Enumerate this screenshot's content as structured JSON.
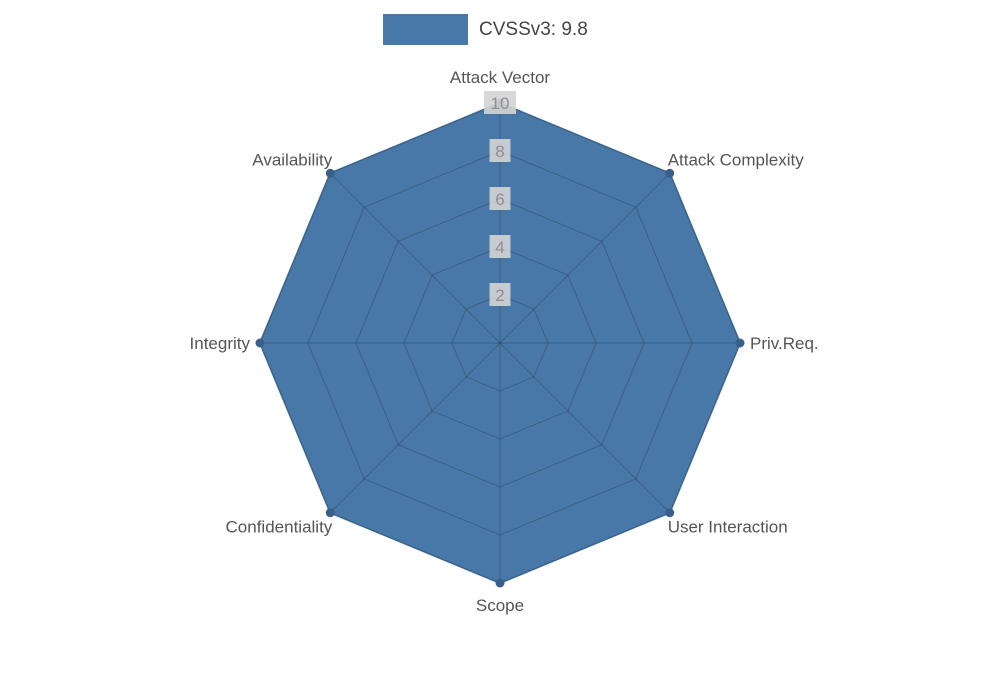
{
  "chart_data": {
    "type": "radar",
    "title": "",
    "categories": [
      "Attack Vector",
      "Attack Complexity",
      "Priv.Req.",
      "User Interaction",
      "Scope",
      "Confidentiality",
      "Integrity",
      "Availability"
    ],
    "series": [
      {
        "name": "CVSSv3: 9.8",
        "values": [
          10,
          10,
          10,
          10,
          10,
          10,
          10,
          10
        ]
      }
    ],
    "ticks": [
      2,
      4,
      6,
      8,
      10
    ],
    "rlim": [
      0,
      10
    ],
    "grid": true,
    "legend_position": "top-center",
    "colors": {
      "fill": "#4878a8",
      "outline": "#4878a8",
      "vertex_dot": "#3a5f88",
      "grid_line": "#5a6a78",
      "axis_label": "#555555",
      "tick_label": "#8f8f8f",
      "tick_label_bg": "#d4d4d4",
      "legend_text": "#444444",
      "background": "#ffffff"
    }
  },
  "legend": {
    "label": "CVSSv3: 9.8"
  }
}
